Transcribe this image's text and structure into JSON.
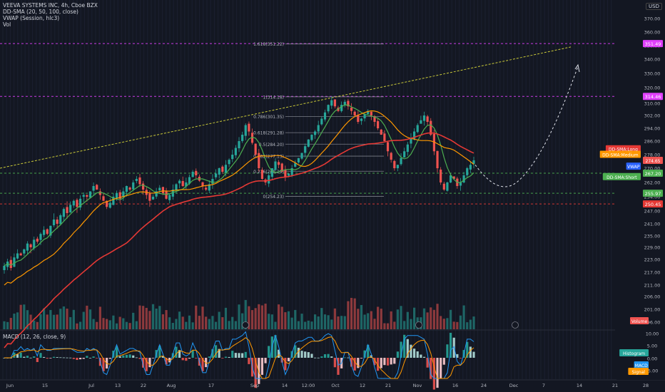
{
  "legend": {
    "symbol": "VEEVA SYSTEMS INC, 4h, Cboe BZX",
    "indicator_sma": "DD-SMA (20, 50, 100, close)",
    "indicator_vwap": "VWAP (Session, hlc3)",
    "indicator_vol": "Vol",
    "indicator_macd": "MACD (12, 26, close, 9)"
  },
  "currency": "USD",
  "colors": {
    "background": "#131722",
    "up": "#26a69a",
    "down": "#ef5350",
    "sma_short": "#4caf50",
    "sma_medium": "#ff9800",
    "sma_long": "#e53935",
    "vwap": "#2962ff",
    "fib": "#9598a1",
    "magenta": "#e040fb",
    "trend": "#c9c938"
  },
  "chart_data": {
    "type": "candlestick",
    "price_axis": {
      "ticks": [
        "370.00",
        "360.00",
        "350.00",
        "340.00",
        "330.00",
        "320.00",
        "310.00",
        "302.00",
        "294.00",
        "286.00",
        "278.00",
        "270.00",
        "262.00",
        "254.00",
        "247.00",
        "241.00",
        "235.00",
        "229.00",
        "223.00",
        "217.00",
        "211.00",
        "206.00",
        "201.00",
        "196.00"
      ]
    },
    "macd_axis": {
      "ticks": [
        "10.00",
        "5.00",
        "0.00",
        "-5.00"
      ]
    },
    "time_axis": {
      "ticks": [
        "Jun",
        "15",
        "Jul",
        "13",
        "22",
        "Aug",
        "17",
        "Sep",
        "14",
        "12:00",
        "Oct",
        "12",
        "21",
        "Nov",
        "16",
        "24",
        "Dec",
        "7",
        "14",
        "21",
        "28"
      ]
    },
    "fib_levels": [
      {
        "label": "1.618(351.22)",
        "price": 351.22
      },
      {
        "label": "1(314.18)",
        "price": 314.18
      },
      {
        "label": "0.786(301.35)",
        "price": 301.35
      },
      {
        "label": "0.618(291.28)",
        "price": 291.28
      },
      {
        "label": "0.5(284.20)",
        "price": 284.2
      },
      {
        "label": "0.382(277.13)",
        "price": 277.13
      },
      {
        "label": "0.236(268.29)",
        "price": 268.29
      },
      {
        "label": "0(254.23)",
        "price": 254.23
      }
    ],
    "horizontal_levels": [
      {
        "value": "351.49",
        "price": 351.49,
        "color": "#e040fb"
      },
      {
        "value": "314.46",
        "price": 314.46,
        "color": "#e040fb"
      },
      {
        "value": "267.20",
        "price": 267.2,
        "color": "#4caf50"
      },
      {
        "value": "255.97",
        "price": 255.97,
        "color": "#4caf50"
      },
      {
        "value": "250.45",
        "price": 250.45,
        "color": "#e53935"
      }
    ],
    "price_tags": [
      {
        "label": "DD-SMA:Long",
        "price": 281.5,
        "color": "#e53935"
      },
      {
        "label": "DD-SMA:Medium",
        "price": 278.2,
        "color": "#ff9800"
      },
      {
        "label": "274.65",
        "price": 274.65,
        "color": "#ef5350"
      },
      {
        "label": "VWAP",
        "price": 271.2,
        "color": "#2962ff"
      },
      {
        "label": "DD-SMA:Short",
        "price": 265.3,
        "color": "#4caf50"
      }
    ],
    "volume_tag": "Volume",
    "macd_tags": [
      "Histogram",
      "MACD",
      "Signal"
    ],
    "close_series": [
      220,
      222,
      219,
      224,
      226,
      225,
      228,
      231,
      229,
      233,
      232,
      236,
      238,
      236,
      240,
      243,
      241,
      245,
      248,
      246,
      250,
      252,
      249,
      253,
      255,
      254,
      257,
      260,
      258,
      255,
      252,
      249,
      251,
      254,
      256,
      253,
      257,
      260,
      258,
      262,
      264,
      261,
      258,
      255,
      252,
      254,
      257,
      259,
      256,
      253,
      255,
      258,
      261,
      263,
      260,
      262,
      265,
      268,
      266,
      263,
      260,
      258,
      261,
      264,
      267,
      270,
      268,
      272,
      275,
      278,
      282,
      286,
      290,
      296,
      292,
      285,
      278,
      270,
      264,
      262,
      266,
      270,
      274,
      272,
      268,
      265,
      267,
      270,
      273,
      276,
      279,
      283,
      287,
      290,
      292,
      296,
      300,
      304,
      309,
      312,
      308,
      305,
      309,
      311,
      308,
      305,
      302,
      298,
      300,
      303,
      305,
      302,
      298,
      294,
      290,
      286,
      280,
      275,
      270,
      272,
      276,
      280,
      284,
      288,
      292,
      296,
      299,
      302,
      298,
      290,
      280,
      270,
      262,
      258,
      262,
      266,
      264,
      260,
      262,
      266,
      270,
      272,
      274.65
    ],
    "projection": "dashed curve down to ~262 then up toward ~335"
  }
}
